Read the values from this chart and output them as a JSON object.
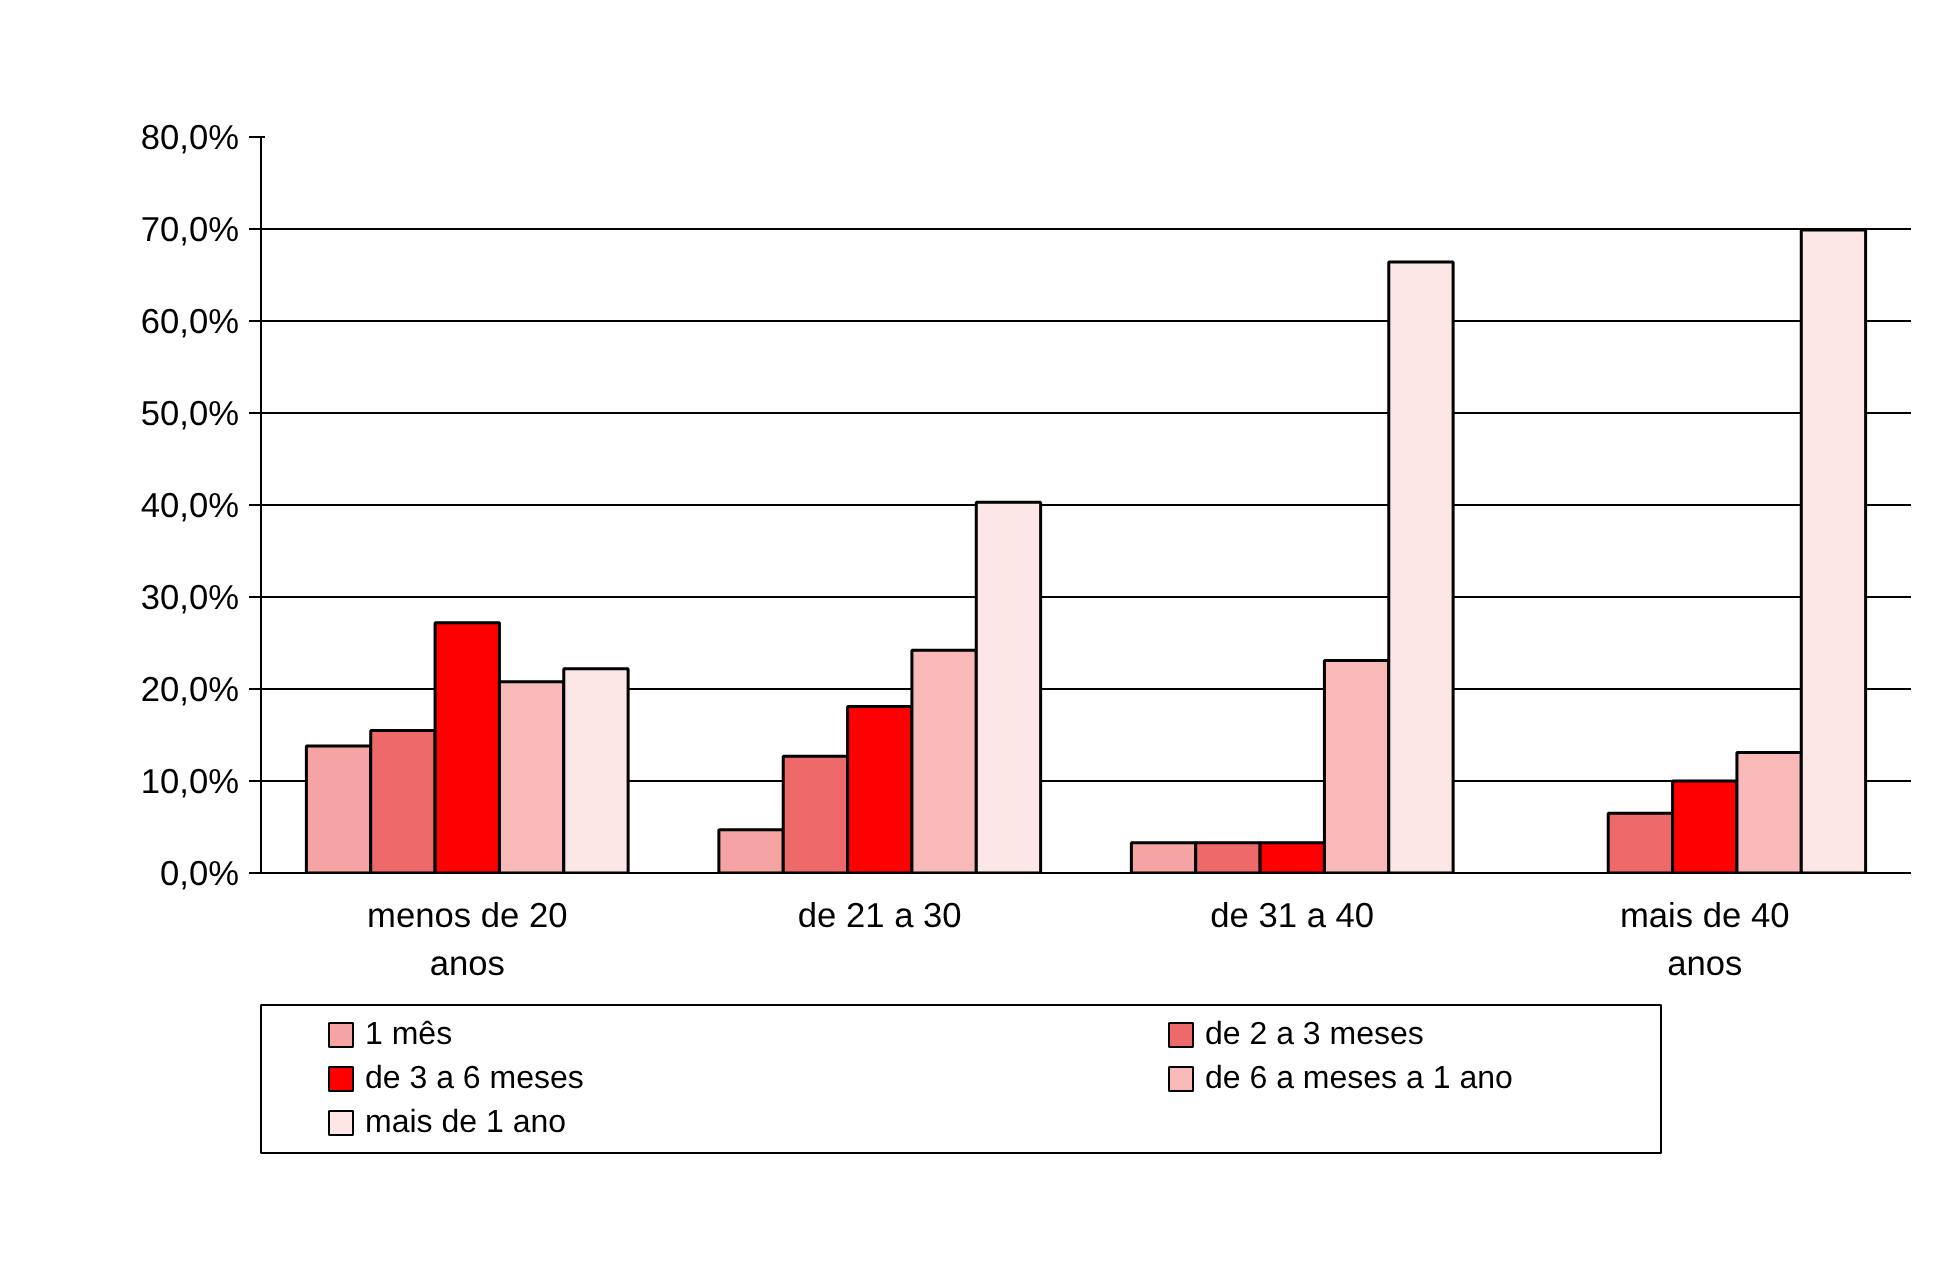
{
  "chart_data": {
    "type": "bar",
    "categories": [
      "menos de 20 anos",
      "de 21 a 30",
      "de 31 a 40",
      "mais de 40 anos"
    ],
    "series": [
      {
        "name": "1 mês",
        "color": "#f5a3a3",
        "values": [
          13.8,
          4.7,
          3.3,
          null
        ]
      },
      {
        "name": "de 2 a 3 meses",
        "color": "#ee6a6a",
        "values": [
          15.5,
          12.7,
          3.3,
          6.5
        ]
      },
      {
        "name": "de 3 a 6 meses",
        "color": "#ff0000",
        "values": [
          27.2,
          18.1,
          3.3,
          10.0
        ]
      },
      {
        "name": "de 6 a meses a 1 ano",
        "color": "#f9b9b9",
        "values": [
          20.8,
          24.2,
          23.1,
          13.1
        ]
      },
      {
        "name": "mais de 1 ano",
        "color": "#fde6e6",
        "values": [
          22.2,
          40.3,
          66.4,
          69.9
        ]
      }
    ],
    "ylim": [
      0,
      80
    ],
    "yticks": [
      {
        "value": 0,
        "label": "0,0%"
      },
      {
        "value": 10,
        "label": "10,0%"
      },
      {
        "value": 20,
        "label": "20,0%"
      },
      {
        "value": 30,
        "label": "30,0%"
      },
      {
        "value": 40,
        "label": "40,0%"
      },
      {
        "value": 50,
        "label": "50,0%"
      },
      {
        "value": 60,
        "label": "60,0%"
      },
      {
        "value": 70,
        "label": "70,0%"
      },
      {
        "value": 80,
        "label": "80,0%"
      }
    ],
    "grid": "y",
    "legend": "bottom"
  }
}
